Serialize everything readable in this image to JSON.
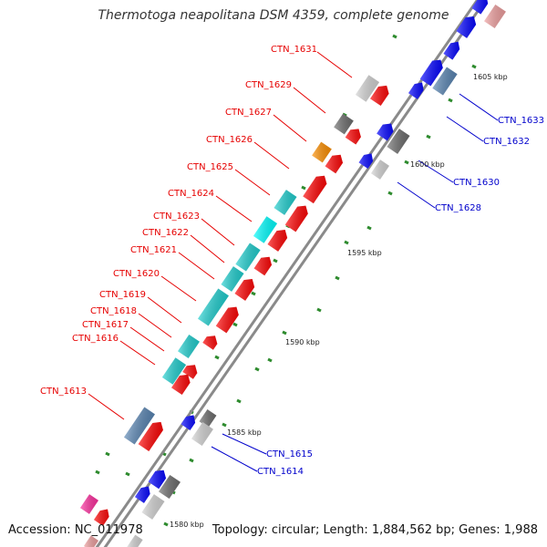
{
  "title": "Thermotoga neapolitana DSM 4359, complete genome",
  "accession": "Accession: NC_011978",
  "summary": "Topology: circular; Length: 1,884,562 bp; Genes: 1,988",
  "colors": {
    "backbone": "#8a8a8a",
    "tick": "#2e8b2e",
    "forward_label": "#e60000",
    "reverse_label": "#0000cc",
    "red": "#ff0000",
    "blue": "#0000ff",
    "cyan": "#20d0d0",
    "bright_cyan": "#00ffff",
    "steel": "#5a86b4",
    "gray": "#6e6e6e",
    "light_gray": "#d4d4d4",
    "orange": "#ff9000",
    "pink": "#f0a0a0",
    "magenta": "#ff30a0"
  },
  "scale_labels": [
    "1605 kbp",
    "1600 kbp",
    "1595 kbp",
    "1590 kbp",
    "1585 kbp",
    "1580 kbp"
  ],
  "forward_genes": [
    {
      "label": "CTN_1631",
      "color": "light_gray"
    },
    {
      "label": "CTN_1629",
      "color": "red"
    },
    {
      "label": "CTN_1627",
      "color": "gray"
    },
    {
      "label": "CTN_1626",
      "color": "orange"
    },
    {
      "label": "CTN_1625",
      "color": "red"
    },
    {
      "label": "CTN_1624",
      "color": "cyan"
    },
    {
      "label": "CTN_1623",
      "color": "bright_cyan"
    },
    {
      "label": "CTN_1622",
      "color": "red"
    },
    {
      "label": "CTN_1621",
      "color": "cyan"
    },
    {
      "label": "CTN_1620",
      "color": "red"
    },
    {
      "label": "CTN_1619",
      "color": "cyan"
    },
    {
      "label": "CTN_1618",
      "color": "red"
    },
    {
      "label": "CTN_1617",
      "color": "cyan"
    },
    {
      "label": "CTN_1616",
      "color": "red"
    },
    {
      "label": "CTN_1613",
      "color": "steel"
    }
  ],
  "reverse_genes": [
    {
      "label": "CTN_1633",
      "color": "steel"
    },
    {
      "label": "CTN_1632",
      "color": "gray"
    },
    {
      "label": "CTN_1630",
      "color": "blue"
    },
    {
      "label": "CTN_1628",
      "color": "light_gray"
    },
    {
      "label": "CTN_1615",
      "color": "gray"
    },
    {
      "label": "CTN_1614",
      "color": "light_gray"
    }
  ]
}
